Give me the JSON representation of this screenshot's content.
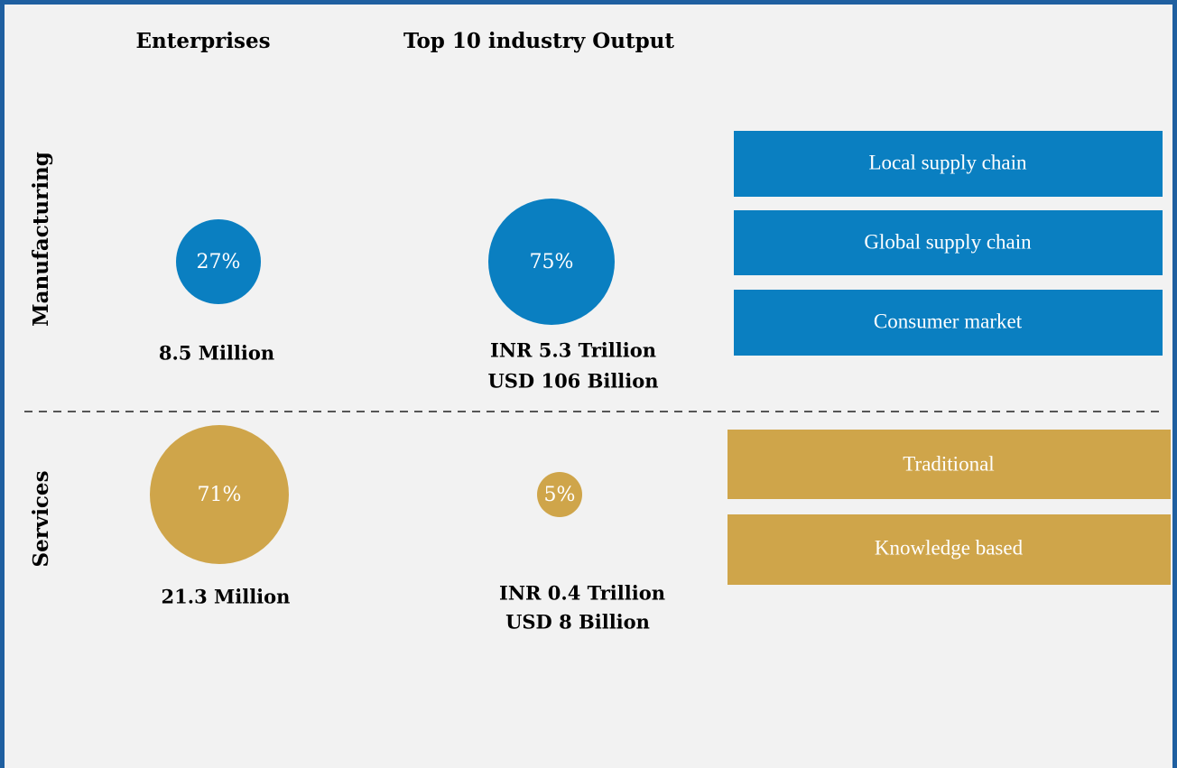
{
  "headers": {
    "enterprises": "Enterprises",
    "output": "Top 10 industry Output"
  },
  "rows": [
    {
      "label": "Manufacturing",
      "enterprises_share": "27%",
      "enterprises_count": "8.5 Million",
      "output_share": "75%",
      "output_inr": "INR 5.3 Trillion",
      "output_usd": "USD 106 Billion",
      "segments": [
        "Local supply chain",
        "Global supply chain",
        "Consumer market"
      ]
    },
    {
      "label": "Services",
      "enterprises_share": "71%",
      "enterprises_count": "21.3 Million",
      "output_share": "5%",
      "output_inr": "INR 0.4 Trillion",
      "output_usd": "USD 8 Billion",
      "segments": [
        "Traditional",
        "Knowledge based"
      ]
    }
  ]
}
